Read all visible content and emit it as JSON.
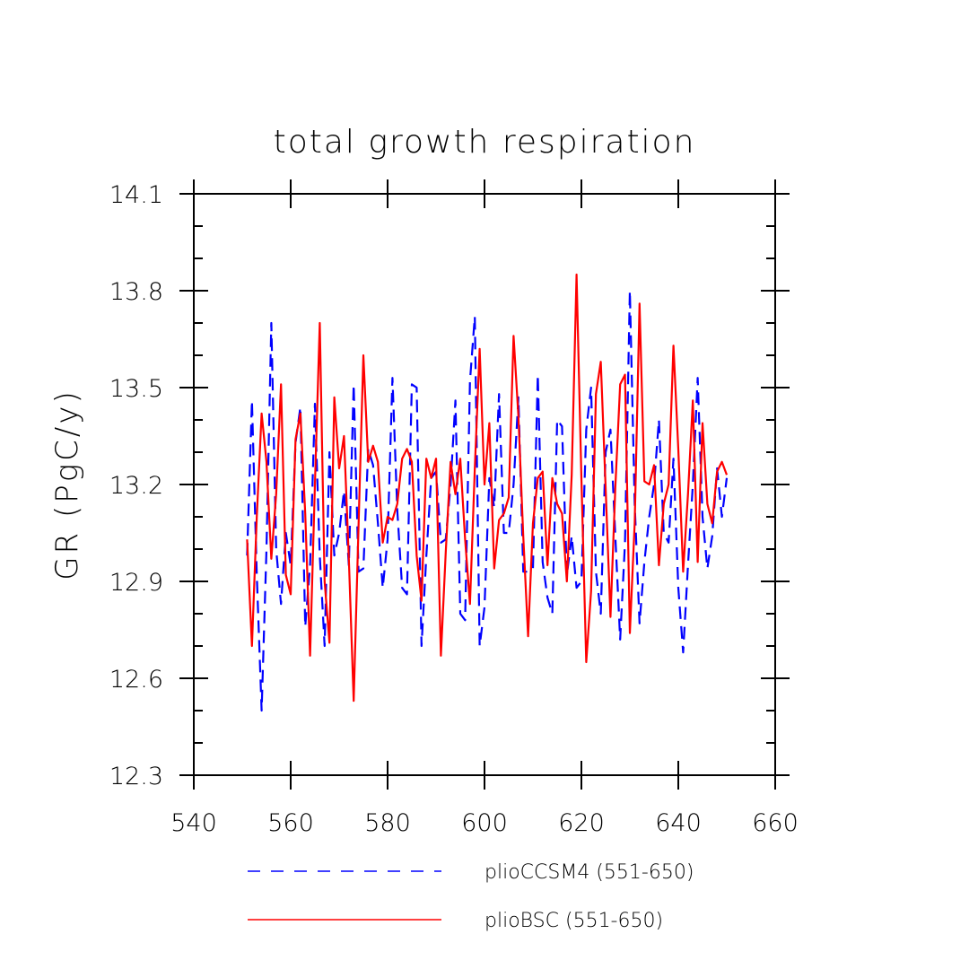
{
  "chart_data": {
    "type": "line",
    "title": "total growth respiration",
    "xlabel": "",
    "ylabel": "GR  (PgC/y)",
    "xlim": [
      540,
      660
    ],
    "ylim": [
      12.3,
      14.1
    ],
    "xticks": [
      540,
      560,
      580,
      600,
      620,
      640,
      660
    ],
    "xtick_labels": [
      "540",
      "560",
      "580",
      "600",
      "620",
      "640",
      "660"
    ],
    "yticks": [
      12.3,
      12.6,
      12.9,
      13.2,
      13.5,
      13.8,
      14.1
    ],
    "ytick_labels": [
      "12.3",
      "12.6",
      "12.9",
      "13.2",
      "13.5",
      "13.8",
      "14.1"
    ],
    "grid": false,
    "legend_position": "bottom",
    "series": [
      {
        "name": "plioCCSM4 (551-650)",
        "color": "#0000ff",
        "style": "dashed",
        "x": [
          551,
          552,
          553,
          554,
          555,
          556,
          557,
          558,
          559,
          560,
          561,
          562,
          563,
          564,
          565,
          566,
          567,
          568,
          569,
          570,
          571,
          572,
          573,
          574,
          575,
          576,
          577,
          578,
          579,
          580,
          581,
          582,
          583,
          584,
          585,
          586,
          587,
          588,
          589,
          590,
          591,
          592,
          593,
          594,
          595,
          596,
          597,
          598,
          599,
          600,
          601,
          602,
          603,
          604,
          605,
          606,
          607,
          608,
          609,
          610,
          611,
          612,
          613,
          614,
          615,
          616,
          617,
          618,
          619,
          620,
          621,
          622,
          623,
          624,
          625,
          626,
          627,
          628,
          629,
          630,
          631,
          632,
          633,
          634,
          635,
          636,
          637,
          638,
          639,
          640,
          641,
          642,
          643,
          644,
          645,
          646,
          647,
          648,
          649,
          650
        ],
        "y": [
          12.98,
          13.46,
          12.92,
          12.5,
          13.0,
          13.7,
          13.0,
          12.83,
          13.05,
          12.95,
          13.33,
          13.44,
          12.76,
          12.95,
          13.45,
          12.98,
          12.7,
          13.3,
          12.98,
          13.05,
          13.18,
          12.95,
          13.51,
          12.93,
          12.94,
          13.31,
          13.26,
          13.08,
          12.88,
          13.03,
          13.53,
          13.12,
          12.88,
          12.86,
          13.51,
          13.5,
          12.7,
          12.98,
          13.22,
          13.24,
          13.02,
          13.03,
          13.2,
          13.46,
          12.8,
          12.78,
          13.52,
          13.72,
          12.7,
          12.82,
          13.22,
          13.13,
          13.48,
          13.05,
          13.05,
          13.2,
          13.47,
          12.93,
          12.93,
          12.94,
          13.54,
          12.96,
          12.85,
          12.8,
          13.4,
          13.38,
          12.92,
          13.04,
          12.88,
          12.9,
          13.37,
          13.5,
          12.93,
          12.8,
          13.3,
          13.37,
          13.04,
          12.72,
          13.02,
          13.8,
          13.14,
          12.77,
          12.96,
          13.1,
          13.2,
          13.4,
          13.05,
          13.02,
          13.28,
          12.88,
          12.68,
          12.95,
          13.2,
          13.53,
          13.1,
          12.94,
          13.04,
          13.25,
          13.1,
          13.22
        ]
      },
      {
        "name": "plioBSC (551-650)",
        "color": "#ff0000",
        "style": "solid",
        "x": [
          551,
          552,
          553,
          554,
          555,
          556,
          557,
          558,
          559,
          560,
          561,
          562,
          563,
          564,
          565,
          566,
          567,
          568,
          569,
          570,
          571,
          572,
          573,
          574,
          575,
          576,
          577,
          578,
          579,
          580,
          581,
          582,
          583,
          584,
          585,
          586,
          587,
          588,
          589,
          590,
          591,
          592,
          593,
          594,
          595,
          596,
          597,
          598,
          599,
          600,
          601,
          602,
          603,
          604,
          605,
          606,
          607,
          608,
          609,
          610,
          611,
          612,
          613,
          614,
          615,
          616,
          617,
          618,
          619,
          620,
          621,
          622,
          623,
          624,
          625,
          626,
          627,
          628,
          629,
          630,
          631,
          632,
          633,
          634,
          635,
          636,
          637,
          638,
          639,
          640,
          641,
          642,
          643,
          644,
          645,
          646,
          647,
          648,
          649,
          650
        ],
        "y": [
          13.03,
          12.7,
          13.1,
          13.42,
          13.27,
          12.97,
          13.17,
          13.51,
          12.92,
          12.86,
          13.34,
          13.42,
          13.11,
          12.67,
          13.2,
          13.7,
          12.9,
          12.71,
          13.47,
          13.25,
          13.35,
          12.97,
          12.53,
          13.07,
          13.6,
          13.27,
          13.32,
          13.27,
          13.02,
          13.1,
          13.09,
          13.14,
          13.28,
          13.31,
          13.27,
          12.98,
          12.84,
          13.28,
          13.22,
          13.28,
          12.67,
          12.99,
          13.27,
          13.17,
          13.28,
          13.03,
          12.83,
          13.25,
          13.62,
          13.2,
          13.39,
          12.94,
          13.09,
          13.11,
          13.16,
          13.66,
          13.41,
          13.04,
          12.73,
          13.08,
          13.22,
          13.24,
          12.95,
          13.22,
          13.14,
          13.11,
          12.9,
          13.23,
          13.85,
          13.22,
          12.65,
          12.87,
          13.48,
          13.58,
          13.19,
          12.79,
          13.19,
          13.51,
          13.54,
          12.74,
          13.08,
          13.76,
          13.21,
          13.2,
          13.26,
          12.95,
          13.14,
          13.2,
          13.63,
          13.31,
          12.93,
          13.17,
          13.46,
          12.96,
          13.39,
          13.14,
          13.08,
          13.24,
          13.27,
          13.23
        ]
      }
    ]
  }
}
